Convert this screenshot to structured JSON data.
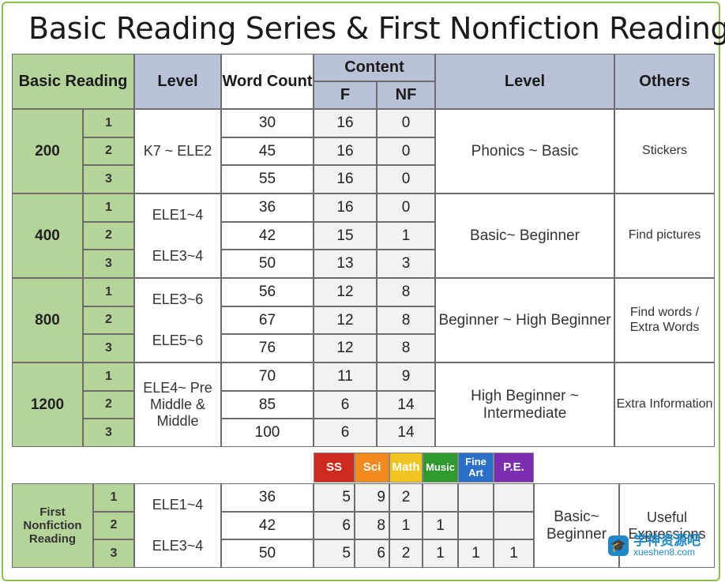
{
  "title": "Basic Reading Series & First Nonfiction Reading",
  "header": {
    "basic_reading": "Basic Reading",
    "level": "Level",
    "word_count": "Word Count",
    "content": "Content",
    "f": "F",
    "nf": "NF",
    "level2": "Level",
    "others": "Others"
  },
  "groups": [
    {
      "name": "200",
      "level_text": [
        "K7 ~ ELE2"
      ],
      "level2": "Phonics ~ Basic",
      "others": "Stickers",
      "rows": [
        {
          "n": "1",
          "wc": "30",
          "f": "16",
          "nf": "0"
        },
        {
          "n": "2",
          "wc": "45",
          "f": "16",
          "nf": "0"
        },
        {
          "n": "3",
          "wc": "55",
          "f": "16",
          "nf": "0"
        }
      ]
    },
    {
      "name": "400",
      "level_text": [
        "ELE1~4",
        "ELE3~4"
      ],
      "level2": "Basic~ Beginner",
      "others": "Find pictures",
      "rows": [
        {
          "n": "1",
          "wc": "36",
          "f": "16",
          "nf": "0"
        },
        {
          "n": "2",
          "wc": "42",
          "f": "15",
          "nf": "1"
        },
        {
          "n": "3",
          "wc": "50",
          "f": "13",
          "nf": "3"
        }
      ]
    },
    {
      "name": "800",
      "level_text": [
        "ELE3~6",
        "ELE5~6"
      ],
      "level2": "Beginner ~ High Beginner",
      "others": "Find words / Extra Words",
      "rows": [
        {
          "n": "1",
          "wc": "56",
          "f": "12",
          "nf": "8"
        },
        {
          "n": "2",
          "wc": "67",
          "f": "12",
          "nf": "8"
        },
        {
          "n": "3",
          "wc": "76",
          "f": "12",
          "nf": "8"
        }
      ]
    },
    {
      "name": "1200",
      "level_text": [
        "ELE4~ Pre Middle & Middle"
      ],
      "level2": "High Beginner ~ Intermediate",
      "others": "Extra Information",
      "rows": [
        {
          "n": "1",
          "wc": "70",
          "f": "11",
          "nf": "9"
        },
        {
          "n": "2",
          "wc": "85",
          "f": "6",
          "nf": "14"
        },
        {
          "n": "3",
          "wc": "100",
          "f": "6",
          "nf": "14"
        }
      ]
    }
  ],
  "categories": [
    {
      "label": "SS",
      "color": "#cc2a1c"
    },
    {
      "label": "Sci",
      "color": "#f28a1e"
    },
    {
      "label": "Math",
      "color": "#f2c41e"
    },
    {
      "label": "Music",
      "color": "#2e9a2e"
    },
    {
      "label": "Fine Art",
      "color": "#2a6fc9"
    },
    {
      "label": "P.E.",
      "color": "#7b2fb0"
    }
  ],
  "nonfiction": {
    "name": "First Nonfiction Reading",
    "level_text": [
      "ELE1~4",
      "ELE3~4"
    ],
    "level2": "Basic~ Beginner",
    "others": "Useful Expressions",
    "rows": [
      {
        "n": "1",
        "wc": "36",
        "vals": [
          "5",
          "9",
          "2",
          "",
          "",
          ""
        ]
      },
      {
        "n": "2",
        "wc": "42",
        "vals": [
          "6",
          "8",
          "1",
          "1",
          "",
          ""
        ]
      },
      {
        "n": "3",
        "wc": "50",
        "vals": [
          "5",
          "6",
          "2",
          "1",
          "1",
          "1"
        ]
      }
    ]
  },
  "watermark": {
    "name": "学神资源吧",
    "url": "xueshen8.com",
    "icon": "graduation-cap-icon",
    "color": "#1e88c8"
  }
}
